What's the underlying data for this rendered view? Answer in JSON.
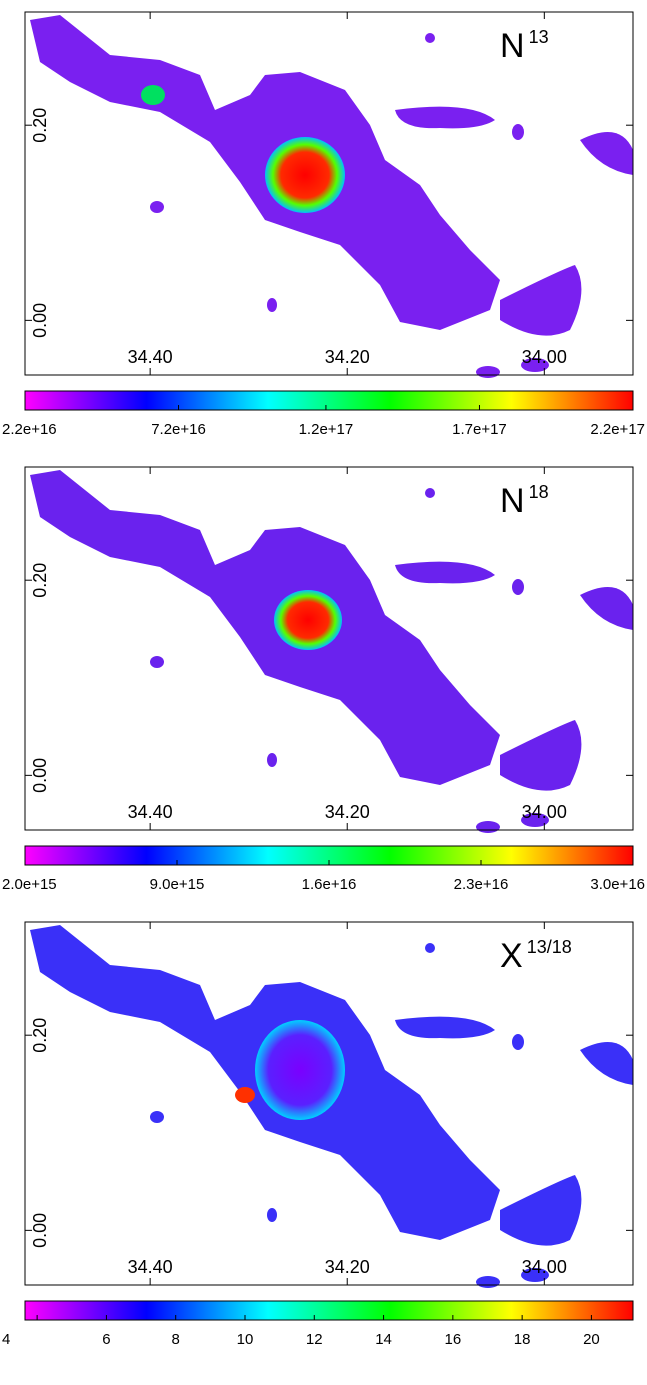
{
  "chart_data": [
    {
      "type": "heatmap",
      "title": "N",
      "superscript": "13",
      "xlim": [
        34.527,
        33.91
      ],
      "xticks": [
        {
          "value": 34.4,
          "label": "34.40"
        },
        {
          "value": 34.2,
          "label": "34.20"
        },
        {
          "value": 34.0,
          "label": "34.00"
        }
      ],
      "ylim": [
        -0.056,
        0.316
      ],
      "yticks": [
        {
          "value": 0,
          "label": "0.00"
        },
        {
          "value": 0.2,
          "label": "0.20"
        }
      ],
      "clim": [
        2.2e+16,
        2.2e+17
      ],
      "cticks": [
        {
          "value": 2.2e+16,
          "label": "2.2e+16"
        },
        {
          "value": 7.2e+16,
          "label": "7.2e+16"
        },
        {
          "value": 1.2e+17,
          "label": "1.2e+17"
        },
        {
          "value": 1.7e+17,
          "label": "1.7e+17"
        },
        {
          "value": 2.2e+17,
          "label": "2.2e+17"
        }
      ],
      "colormap": [
        "#ff00ff",
        "#0000ff",
        "#00ffff",
        "#00ff00",
        "#ffff00",
        "#ff0000"
      ]
    },
    {
      "type": "heatmap",
      "title": "N",
      "superscript": "18",
      "xlim": [
        34.527,
        33.91
      ],
      "xticks": [
        {
          "value": 34.4,
          "label": "34.40"
        },
        {
          "value": 34.2,
          "label": "34.20"
        },
        {
          "value": 34.0,
          "label": "34.00"
        }
      ],
      "ylim": [
        -0.056,
        0.316
      ],
      "yticks": [
        {
          "value": 0,
          "label": "0.00"
        },
        {
          "value": 0.2,
          "label": "0.20"
        }
      ],
      "clim": [
        2000000000000000.0,
        3e+16
      ],
      "cticks": [
        {
          "value": 2000000000000000.0,
          "label": "2.0e+15"
        },
        {
          "value": 9000000000000000.0,
          "label": "9.0e+15"
        },
        {
          "value": 1.6e+16,
          "label": "1.6e+16"
        },
        {
          "value": 2.3e+16,
          "label": "2.3e+16"
        },
        {
          "value": 3e+16,
          "label": "3.0e+16"
        }
      ],
      "colormap": [
        "#ff00ff",
        "#0000ff",
        "#00ffff",
        "#00ff00",
        "#ffff00",
        "#ff0000"
      ]
    },
    {
      "type": "heatmap",
      "title": "X",
      "superscript": "13/18",
      "xlim": [
        34.527,
        33.91
      ],
      "xticks": [
        {
          "value": 34.4,
          "label": "34.40"
        },
        {
          "value": 34.2,
          "label": "34.20"
        },
        {
          "value": 34.0,
          "label": "34.00"
        }
      ],
      "ylim": [
        -0.056,
        0.316
      ],
      "yticks": [
        {
          "value": 0,
          "label": "0.00"
        },
        {
          "value": 0.2,
          "label": "0.20"
        }
      ],
      "clim": [
        3.65,
        21.2
      ],
      "cticks": [
        4,
        6,
        8,
        10,
        12,
        14,
        16,
        18,
        20
      ],
      "colormap": [
        "#ff00ff",
        "#0000ff",
        "#00ffff",
        "#00ff00",
        "#ffff00",
        "#ff0000"
      ]
    }
  ]
}
